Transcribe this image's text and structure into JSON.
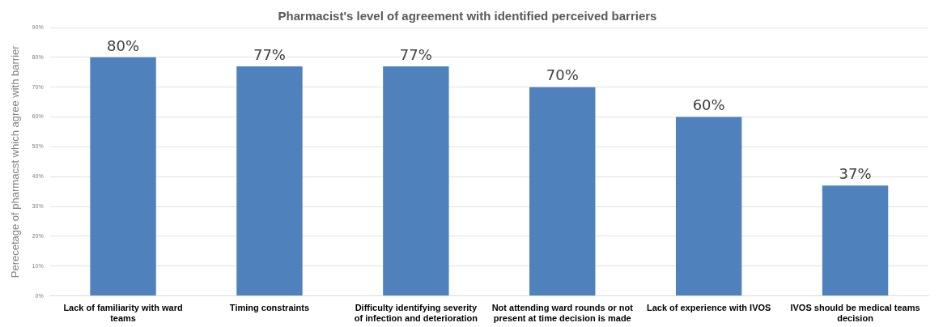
{
  "chart_data": {
    "type": "bar",
    "title": "Pharmacist's level of agreement with identified perceived barriers",
    "ylabel": "Perecetage of pharmacst which agree with barrier",
    "categories": [
      "Lack of familiarity with ward teams",
      "Timing constraints",
      "Difficulty identifying severity of infection and deterioration",
      "Not attending ward rounds or not present at time decision is made",
      "Lack of experience with IVOS",
      "IVOS should be medical teams decision"
    ],
    "values": [
      80,
      77,
      77,
      70,
      60,
      37
    ],
    "color": "#4f81bd",
    "value_labels": [
      "80%",
      "77%",
      "77%",
      "70%",
      "60%",
      "37%"
    ],
    "ylim": [
      0,
      90
    ],
    "yticks": [
      {
        "value": 0,
        "label": "0%"
      },
      {
        "value": 10,
        "label": "10%"
      },
      {
        "value": 20,
        "label": "20%"
      },
      {
        "value": 30,
        "label": "30%"
      },
      {
        "value": 40,
        "label": "40%"
      },
      {
        "value": 50,
        "label": "50%"
      },
      {
        "value": 60,
        "label": "60%"
      },
      {
        "value": 70,
        "label": "70%"
      },
      {
        "value": 80,
        "label": "80%"
      },
      {
        "value": 90,
        "label": "90%"
      }
    ],
    "grid": "y"
  }
}
